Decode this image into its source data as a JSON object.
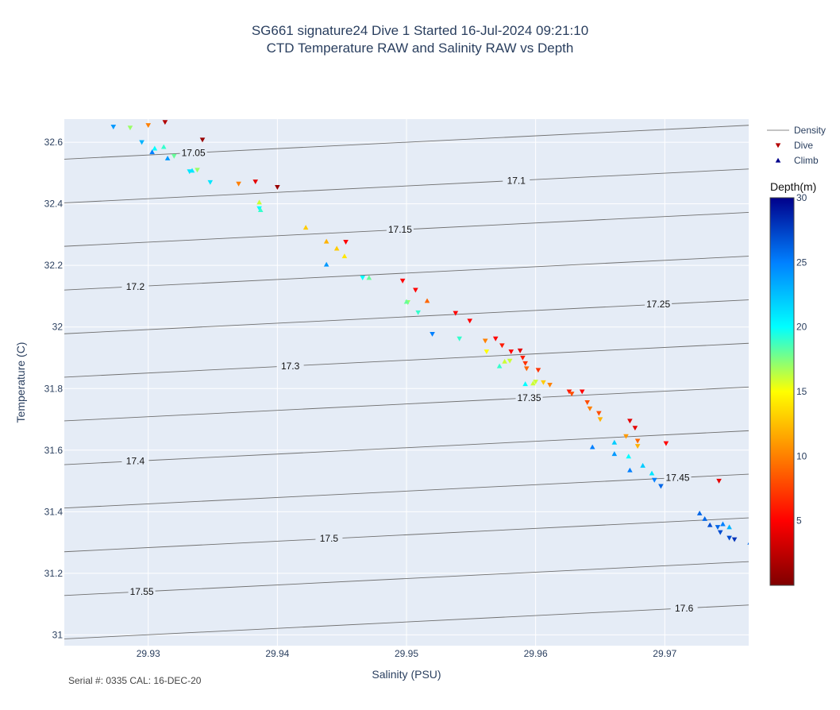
{
  "chart_data": {
    "type": "scatter",
    "title": "SG661 signature24 Dive 1 Started 16-Jul-2024 09:21:10",
    "subtitle": "CTD Temperature RAW and Salinity RAW vs Depth",
    "xlabel": "Salinity (PSU)",
    "ylabel": "Temperature (C)",
    "xlim": [
      29.9235,
      29.9765
    ],
    "ylim": [
      30.965,
      32.675
    ],
    "xticks": [
      "29.93",
      "29.94",
      "29.95",
      "29.96",
      "29.97"
    ],
    "xtick_values": [
      29.93,
      29.94,
      29.95,
      29.96,
      29.97
    ],
    "yticks": [
      "31",
      "31.2",
      "31.4",
      "31.6",
      "31.8",
      "32",
      "32.2",
      "32.4",
      "32.6"
    ],
    "ytick_values": [
      31.0,
      31.2,
      31.4,
      31.6,
      31.8,
      32.0,
      32.2,
      32.4,
      32.6
    ],
    "grid": true,
    "footer": "Serial #: 0335  CAL: 16-DEC-20",
    "legend": {
      "placement": "top-right",
      "entries": [
        {
          "name": "Density",
          "symbol": "line",
          "color": "#888888"
        },
        {
          "name": "Dive",
          "symbol": "triangle-down",
          "color": "#b40000"
        },
        {
          "name": "Climb",
          "symbol": "triangle-up",
          "color": "#00008b"
        }
      ]
    },
    "colorbar": {
      "title": "Depth(m)",
      "min": 0,
      "max": 30,
      "tick_labels": [
        "5",
        "10",
        "15",
        "20",
        "25",
        "30"
      ],
      "tick_values": [
        5,
        10,
        15,
        20,
        25,
        30
      ],
      "colorscale": [
        "#7f0000",
        "#ff0000",
        "#ff8000",
        "#ffff00",
        "#00ffff",
        "#0080ff",
        "#00008b"
      ]
    },
    "density_contours": [
      {
        "label": "17.05",
        "left": 32.545,
        "right": 32.655,
        "label_x": 29.9335
      },
      {
        "label": "17.1",
        "left": 32.403,
        "right": 32.513,
        "label_x": 29.9585
      },
      {
        "label": "17.15",
        "left": 32.262,
        "right": 32.372,
        "label_x": 29.9495
      },
      {
        "label": "17.2",
        "left": 32.12,
        "right": 32.23,
        "label_x": 29.929
      },
      {
        "label": "17.25",
        "left": 31.978,
        "right": 32.088,
        "label_x": 29.9695
      },
      {
        "label": "17.3",
        "left": 31.837,
        "right": 31.947,
        "label_x": 29.941
      },
      {
        "label": "17.35",
        "left": 31.695,
        "right": 31.805,
        "label_x": 29.9595
      },
      {
        "label": "17.4",
        "left": 31.553,
        "right": 31.663,
        "label_x": 29.929
      },
      {
        "label": "17.45",
        "left": 31.412,
        "right": 31.522,
        "label_x": 29.971
      },
      {
        "label": "17.5",
        "left": 31.27,
        "right": 31.38,
        "label_x": 29.944
      },
      {
        "label": "17.55",
        "left": 31.128,
        "right": 31.238,
        "label_x": 29.9295
      },
      {
        "label": "17.6",
        "left": 30.987,
        "right": 31.097,
        "label_x": 29.9715
      }
    ],
    "series": [
      {
        "name": "Dive",
        "marker": "triangle-down",
        "points": [
          {
            "x": 29.9313,
            "y": 32.665,
            "depth": 2
          },
          {
            "x": 29.9342,
            "y": 32.608,
            "depth": 1
          },
          {
            "x": 29.93,
            "y": 32.655,
            "depth": 10
          },
          {
            "x": 29.9273,
            "y": 32.65,
            "depth": 24
          },
          {
            "x": 29.9286,
            "y": 32.647,
            "depth": 17
          },
          {
            "x": 29.9383,
            "y": 32.472,
            "depth": 4
          },
          {
            "x": 29.94,
            "y": 32.454,
            "depth": 1
          },
          {
            "x": 29.937,
            "y": 32.465,
            "depth": 10
          },
          {
            "x": 29.9453,
            "y": 32.276,
            "depth": 5
          },
          {
            "x": 29.9497,
            "y": 32.15,
            "depth": 5
          },
          {
            "x": 29.9507,
            "y": 32.12,
            "depth": 5
          },
          {
            "x": 29.9538,
            "y": 32.045,
            "depth": 5
          },
          {
            "x": 29.9549,
            "y": 32.02,
            "depth": 5
          },
          {
            "x": 29.9569,
            "y": 31.962,
            "depth": 5
          },
          {
            "x": 29.9574,
            "y": 31.94,
            "depth": 6
          },
          {
            "x": 29.9581,
            "y": 31.92,
            "depth": 5
          },
          {
            "x": 29.9588,
            "y": 31.923,
            "depth": 4
          },
          {
            "x": 29.959,
            "y": 31.9,
            "depth": 6
          },
          {
            "x": 29.9592,
            "y": 31.882,
            "depth": 7
          },
          {
            "x": 29.9593,
            "y": 31.865,
            "depth": 9
          },
          {
            "x": 29.9602,
            "y": 31.86,
            "depth": 7
          },
          {
            "x": 29.9561,
            "y": 31.955,
            "depth": 10
          },
          {
            "x": 29.9626,
            "y": 31.79,
            "depth": 6
          },
          {
            "x": 29.9628,
            "y": 31.783,
            "depth": 8
          },
          {
            "x": 29.9636,
            "y": 31.79,
            "depth": 5
          },
          {
            "x": 29.964,
            "y": 31.755,
            "depth": 8
          },
          {
            "x": 29.9642,
            "y": 31.735,
            "depth": 10
          },
          {
            "x": 29.9649,
            "y": 31.72,
            "depth": 8
          },
          {
            "x": 29.965,
            "y": 31.7,
            "depth": 12
          },
          {
            "x": 29.9673,
            "y": 31.695,
            "depth": 4
          },
          {
            "x": 29.9677,
            "y": 31.672,
            "depth": 4
          },
          {
            "x": 29.9679,
            "y": 31.63,
            "depth": 9
          },
          {
            "x": 29.9679,
            "y": 31.613,
            "depth": 12
          },
          {
            "x": 29.967,
            "y": 31.645,
            "depth": 11
          },
          {
            "x": 29.9701,
            "y": 31.622,
            "depth": 5
          },
          {
            "x": 29.9742,
            "y": 31.5,
            "depth": 4
          },
          {
            "x": 29.9692,
            "y": 31.503,
            "depth": 25
          },
          {
            "x": 29.9697,
            "y": 31.483,
            "depth": 26
          },
          {
            "x": 29.9743,
            "y": 31.333,
            "depth": 27
          },
          {
            "x": 29.975,
            "y": 31.315,
            "depth": 27
          },
          {
            "x": 29.9754,
            "y": 31.31,
            "depth": 28
          },
          {
            "x": 29.9741,
            "y": 31.35,
            "depth": 26
          },
          {
            "x": 29.9295,
            "y": 32.6,
            "depth": 23
          },
          {
            "x": 29.932,
            "y": 32.555,
            "depth": 18
          },
          {
            "x": 29.9348,
            "y": 32.47,
            "depth": 21
          },
          {
            "x": 29.9386,
            "y": 32.385,
            "depth": 20
          },
          {
            "x": 29.9466,
            "y": 32.16,
            "depth": 20
          },
          {
            "x": 29.9501,
            "y": 32.08,
            "depth": 17
          },
          {
            "x": 29.9509,
            "y": 32.047,
            "depth": 19
          },
          {
            "x": 29.952,
            "y": 31.977,
            "depth": 25
          },
          {
            "x": 29.9541,
            "y": 31.962,
            "depth": 19
          },
          {
            "x": 29.9562,
            "y": 31.92,
            "depth": 15
          },
          {
            "x": 29.958,
            "y": 31.89,
            "depth": 16
          },
          {
            "x": 29.96,
            "y": 31.822,
            "depth": 16
          },
          {
            "x": 29.9606,
            "y": 31.82,
            "depth": 13
          },
          {
            "x": 29.9611,
            "y": 31.812,
            "depth": 10
          },
          {
            "x": 29.9332,
            "y": 32.505,
            "depth": 21
          },
          {
            "x": 29.9338,
            "y": 32.51,
            "depth": 17
          }
        ]
      },
      {
        "name": "Climb",
        "marker": "triangle-up",
        "points": [
          {
            "x": 29.9305,
            "y": 32.58,
            "depth": 20
          },
          {
            "x": 29.9312,
            "y": 32.585,
            "depth": 19
          },
          {
            "x": 29.9303,
            "y": 32.568,
            "depth": 25
          },
          {
            "x": 29.9315,
            "y": 32.548,
            "depth": 24
          },
          {
            "x": 29.9334,
            "y": 32.508,
            "depth": 21
          },
          {
            "x": 29.9386,
            "y": 32.405,
            "depth": 16
          },
          {
            "x": 29.9387,
            "y": 32.38,
            "depth": 19
          },
          {
            "x": 29.9422,
            "y": 32.323,
            "depth": 13
          },
          {
            "x": 29.9438,
            "y": 32.278,
            "depth": 12
          },
          {
            "x": 29.9446,
            "y": 32.255,
            "depth": 13
          },
          {
            "x": 29.9452,
            "y": 32.23,
            "depth": 14
          },
          {
            "x": 29.9438,
            "y": 32.203,
            "depth": 24
          },
          {
            "x": 29.9471,
            "y": 32.16,
            "depth": 18
          },
          {
            "x": 29.95,
            "y": 32.082,
            "depth": 18
          },
          {
            "x": 29.9516,
            "y": 32.085,
            "depth": 9
          },
          {
            "x": 29.9572,
            "y": 31.873,
            "depth": 19
          },
          {
            "x": 29.9576,
            "y": 31.888,
            "depth": 16
          },
          {
            "x": 29.9592,
            "y": 31.815,
            "depth": 20
          },
          {
            "x": 29.9598,
            "y": 31.817,
            "depth": 16
          },
          {
            "x": 29.9644,
            "y": 31.61,
            "depth": 25
          },
          {
            "x": 29.9661,
            "y": 31.625,
            "depth": 22
          },
          {
            "x": 29.9661,
            "y": 31.588,
            "depth": 24
          },
          {
            "x": 29.9672,
            "y": 31.58,
            "depth": 20
          },
          {
            "x": 29.9673,
            "y": 31.535,
            "depth": 25
          },
          {
            "x": 29.9683,
            "y": 31.55,
            "depth": 22
          },
          {
            "x": 29.969,
            "y": 31.525,
            "depth": 21
          },
          {
            "x": 29.9727,
            "y": 31.395,
            "depth": 26
          },
          {
            "x": 29.9731,
            "y": 31.377,
            "depth": 26
          },
          {
            "x": 29.9735,
            "y": 31.357,
            "depth": 27
          },
          {
            "x": 29.9745,
            "y": 31.36,
            "depth": 25
          },
          {
            "x": 29.975,
            "y": 31.35,
            "depth": 23
          },
          {
            "x": 29.9766,
            "y": 31.3,
            "depth": 26
          }
        ]
      }
    ]
  }
}
